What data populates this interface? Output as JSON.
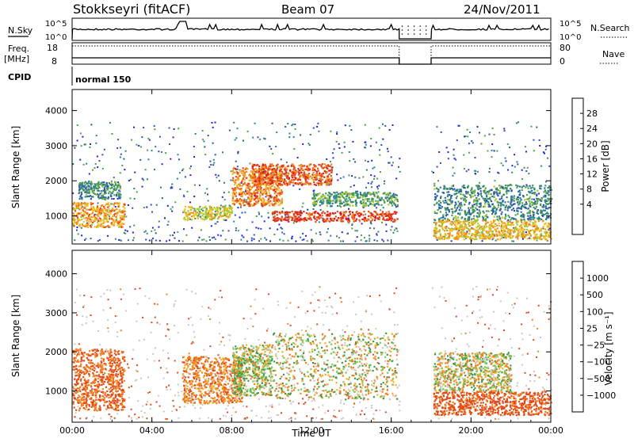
{
  "header": {
    "station": "Stokkseyri (fitACF)",
    "beam": "Beam 07",
    "date": "24/Nov/2011"
  },
  "summary_panels": {
    "nsky_label": "N.Sky",
    "nsky_top_tick": "10^5",
    "nsky_bottom_tick": "10^0",
    "nsearch_label": "N.Search",
    "nsearch_top_tick": "10^5",
    "nsearch_bottom_tick": "10^0",
    "freq_label": "Freq.",
    "freq_unit": "[MHz]",
    "freq_ticks": [
      "18",
      "8"
    ],
    "nave_label": "Nave",
    "nave_ticks": [
      "80",
      "0"
    ],
    "cpid_label": "CPID",
    "cpid_value": "normal 150"
  },
  "chart_data": [
    {
      "type": "heatmap",
      "name": "power",
      "xlabel": "",
      "ylabel": "Slant Range [km]",
      "x_ticks": [
        "00:00",
        "04:00",
        "08:00",
        "12:00",
        "16:00",
        "20:00",
        "00:00"
      ],
      "y_ticks": [
        1000,
        2000,
        3000,
        4000
      ],
      "xlim_hours": [
        0,
        24
      ],
      "ylim_km": [
        200,
        4600
      ],
      "colorbar_label": "Power [dB]",
      "colorbar_ticks": [
        4,
        8,
        12,
        16,
        20,
        24,
        28
      ],
      "colorbar_range": [
        0,
        32
      ],
      "colors": [
        "#1f1fe0",
        "#2a4fb8",
        "#2e7f8c",
        "#4aa04a",
        "#a8c832",
        "#f0c020",
        "#f08c1e",
        "#e84a1a",
        "#d81e1e"
      ],
      "data_gap_hours": [
        16.4,
        18.0
      ],
      "features": [
        {
          "t0": 0.0,
          "t1": 2.6,
          "r0": 700,
          "r1": 1400,
          "level": 22
        },
        {
          "t0": 0.3,
          "t1": 2.4,
          "r0": 1500,
          "r1": 2000,
          "level": 10
        },
        {
          "t0": 5.5,
          "t1": 8.0,
          "r0": 900,
          "r1": 1300,
          "level": 18
        },
        {
          "t0": 8.0,
          "t1": 10.5,
          "r0": 1300,
          "r1": 2400,
          "level": 24
        },
        {
          "t0": 9.0,
          "t1": 13.0,
          "r0": 1900,
          "r1": 2500,
          "level": 26
        },
        {
          "t0": 10.0,
          "t1": 16.3,
          "r0": 850,
          "r1": 1150,
          "level": 28
        },
        {
          "t0": 12.0,
          "t1": 16.3,
          "r0": 1300,
          "r1": 1700,
          "level": 12
        },
        {
          "t0": 18.1,
          "t1": 24.0,
          "r0": 350,
          "r1": 900,
          "level": 20
        },
        {
          "t0": 18.1,
          "t1": 24.0,
          "r0": 900,
          "r1": 1900,
          "level": 10
        }
      ]
    },
    {
      "type": "heatmap",
      "name": "velocity",
      "xlabel": "Time UT",
      "ylabel": "Slant Range [km]",
      "x_ticks": [
        "00:00",
        "04:00",
        "08:00",
        "12:00",
        "16:00",
        "20:00",
        "00:00"
      ],
      "y_ticks": [
        1000,
        2000,
        3000,
        4000
      ],
      "xlim_hours": [
        0,
        24
      ],
      "ylim_km": [
        200,
        4600
      ],
      "colorbar_label": "Velocity [m s⁻¹]",
      "colorbar_ticks": [
        "1000",
        "500",
        "100",
        "25",
        "−25",
        "−100",
        "−500",
        "−1000"
      ],
      "colors": [
        "#1b3fc8",
        "#2f6fa8",
        "#3f9a46",
        "#78c850",
        "#c8c8c0",
        "#f0b030",
        "#f08020",
        "#e04a18",
        "#d01818"
      ],
      "data_gap_hours": [
        16.4,
        18.0
      ],
      "features": [
        {
          "t0": 0.0,
          "t1": 2.6,
          "r0": 500,
          "r1": 2100,
          "level": -300
        },
        {
          "t0": 5.5,
          "t1": 8.5,
          "r0": 700,
          "r1": 1900,
          "level": -200
        },
        {
          "t0": 8.0,
          "t1": 10.0,
          "r0": 900,
          "r1": 2200,
          "level": 50
        },
        {
          "t0": 10.0,
          "t1": 16.3,
          "r0": 800,
          "r1": 2500,
          "level": 0
        },
        {
          "t0": 18.1,
          "t1": 24.0,
          "r0": 400,
          "r1": 1000,
          "level": -400
        },
        {
          "t0": 18.1,
          "t1": 22.0,
          "r0": 1000,
          "r1": 2000,
          "level": 0
        }
      ]
    }
  ]
}
